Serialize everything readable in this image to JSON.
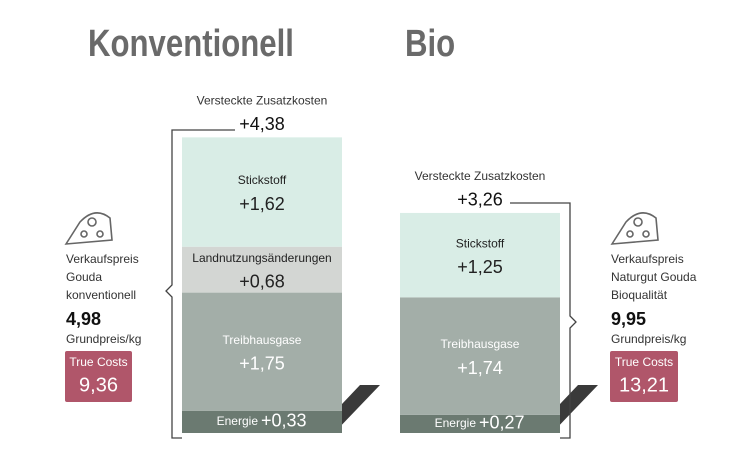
{
  "chart_data": {
    "type": "stacked-bar",
    "columns": [
      {
        "title": "Konventionell",
        "hidden_label": "Versteckte Zusatzkosten",
        "hidden_value": 4.38,
        "hidden_value_label": "+4,38",
        "product_lines": [
          "Verkaufspreis",
          "Gouda",
          "konventionell"
        ],
        "price": 4.98,
        "price_label": "4,98",
        "unit": "Grundpreis/kg",
        "true_costs_label": "True Costs",
        "true_costs": 9.36,
        "true_costs_value_label": "9,36",
        "segments": [
          {
            "name": "Energie",
            "value": 0.33,
            "value_label": "+0,33",
            "color": "#6b7a71",
            "text_color": "#ffffff"
          },
          {
            "name": "Treibhausgase",
            "value": 1.75,
            "value_label": "+1,75",
            "color": "#a3aea8",
            "text_color": "#ffffff"
          },
          {
            "name": "Landnutzungsänderungen",
            "value": 0.68,
            "value_label": "+0,68",
            "color": "#d3d6d3",
            "text_color": "#222222"
          },
          {
            "name": "Stickstoff",
            "value": 1.62,
            "value_label": "+1,62",
            "color": "#d9ede6",
            "text_color": "#222222"
          }
        ]
      },
      {
        "title": "Bio",
        "hidden_label": "Versteckte Zusatzkosten",
        "hidden_value": 3.26,
        "hidden_value_label": "+3,26",
        "product_lines": [
          "Verkaufspreis",
          "Naturgut Gouda",
          "Bioqualität"
        ],
        "price": 9.95,
        "price_label": "9,95",
        "unit": "Grundpreis/kg",
        "true_costs_label": "True Costs",
        "true_costs": 13.21,
        "true_costs_value_label": "13,21",
        "segments": [
          {
            "name": "Energie",
            "value": 0.27,
            "value_label": "+0,27",
            "color": "#6b7a71",
            "text_color": "#ffffff"
          },
          {
            "name": "Treibhausgase",
            "value": 1.74,
            "value_label": "+1,74",
            "color": "#a3aea8",
            "text_color": "#ffffff"
          },
          {
            "name": "Stickstoff",
            "value": 1.25,
            "value_label": "+1,25",
            "color": "#d9ede6",
            "text_color": "#222222"
          }
        ]
      }
    ]
  }
}
